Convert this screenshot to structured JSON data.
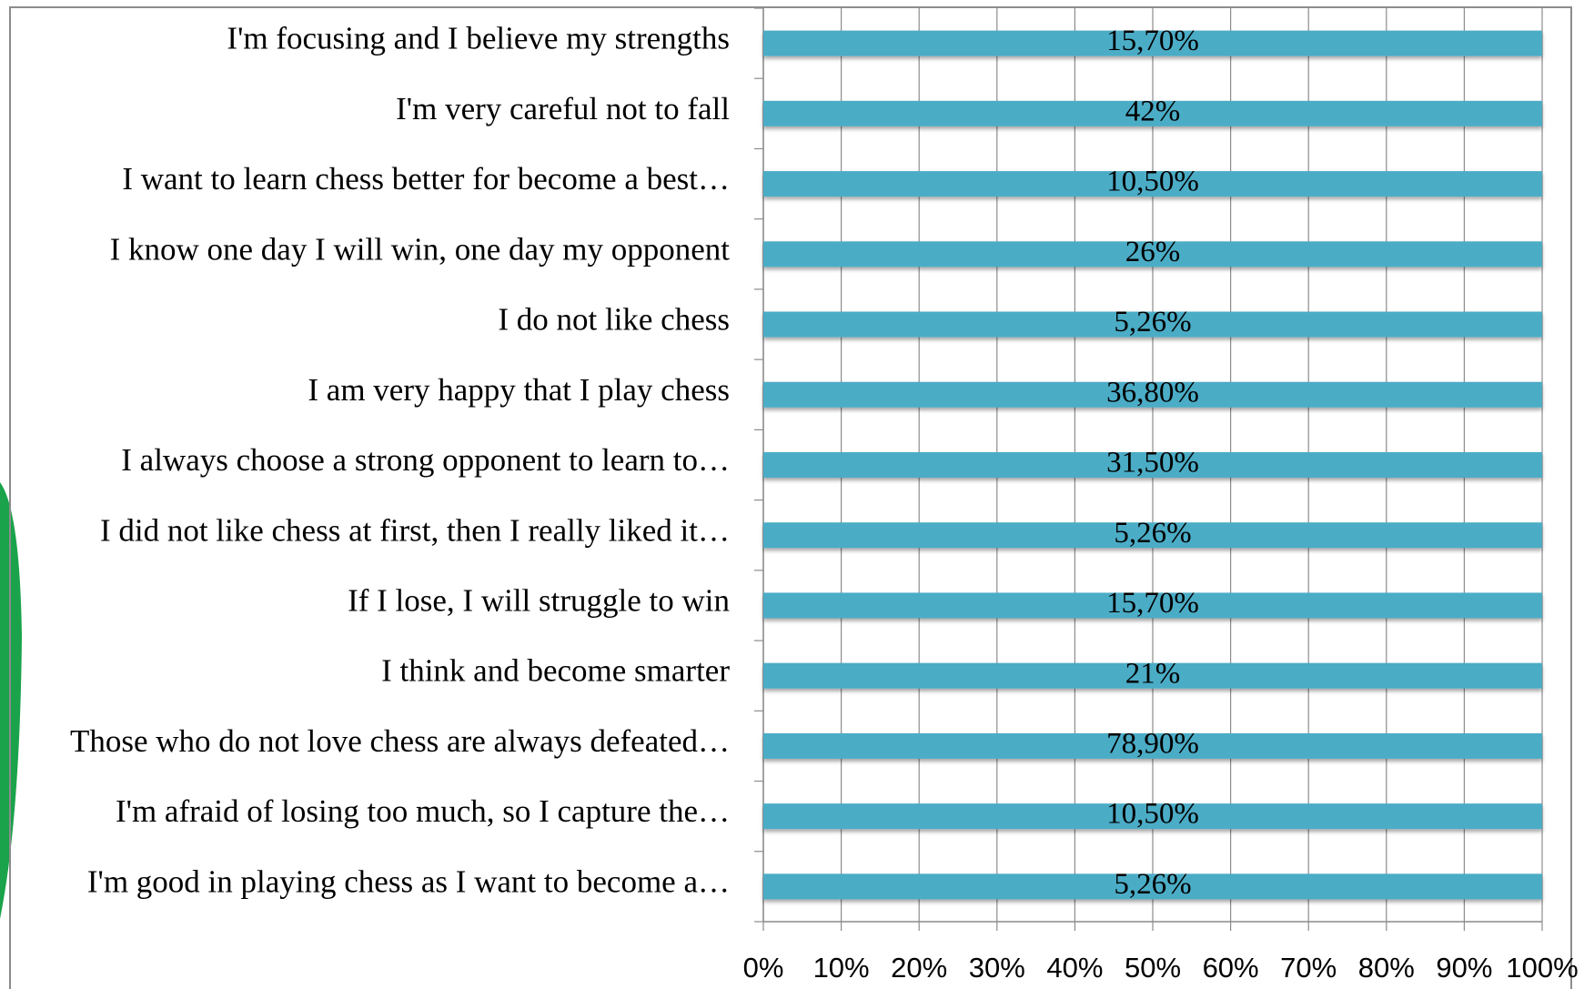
{
  "chart_data": {
    "type": "bar",
    "orientation": "horizontal",
    "stacked_percent": true,
    "categories": [
      "I'm focusing and I believe my strengths",
      "I'm very careful not to fall",
      "I want to learn chess better for become a best…",
      "I know one day I will win, one day my opponent",
      "I do not like chess",
      "I am very happy  that I play chess",
      "I always choose a strong opponent to learn to…",
      "I did not like chess at first, then I really liked it…",
      "If I lose, I will struggle to win",
      "I think and become smarter",
      "Those who do not love chess are always defeated…",
      "I'm afraid of losing too much, so I capture the…",
      "I'm good in playing chess as I want to become a…"
    ],
    "values": [
      15.7,
      42,
      10.5,
      26,
      5.26,
      36.8,
      31.5,
      5.26,
      15.7,
      21,
      78.9,
      10.5,
      5.26
    ],
    "value_labels": [
      "15,70%",
      "42%",
      "10,50%",
      "26%",
      "5,26%",
      "36,80%",
      "31,50%",
      "5,26%",
      "15,70%",
      "21%",
      "78,90%",
      "10,50%",
      "5,26%"
    ],
    "color": "#4bacc6",
    "xlim": [
      0,
      100
    ],
    "xticks": [
      {
        "value": 0,
        "label": "0%"
      },
      {
        "value": 10,
        "label": "10%"
      },
      {
        "value": 20,
        "label": "20%"
      },
      {
        "value": 30,
        "label": "30%"
      },
      {
        "value": 40,
        "label": "40%"
      },
      {
        "value": 50,
        "label": "50%"
      },
      {
        "value": 60,
        "label": "60%"
      },
      {
        "value": 70,
        "label": "70%"
      },
      {
        "value": 80,
        "label": "80%"
      },
      {
        "value": 90,
        "label": "90%"
      },
      {
        "value": 100,
        "label": "100%"
      }
    ],
    "grid": true
  }
}
